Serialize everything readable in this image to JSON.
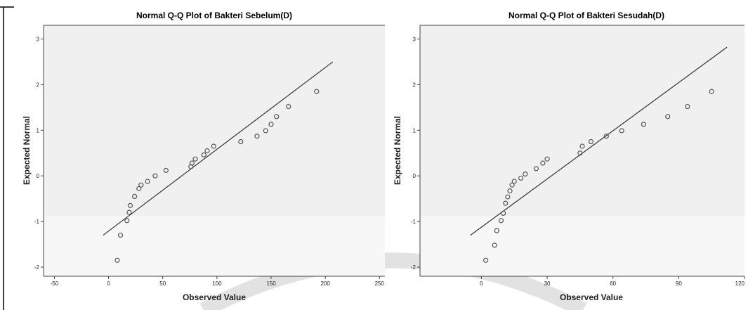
{
  "chart_data": [
    {
      "type": "scatter",
      "title": "Normal Q-Q Plot of Bakteri Sebelum(D)",
      "xlabel": "Observed Value",
      "ylabel": "Expected Normal",
      "xlim": [
        -60,
        255
      ],
      "ylim": [
        -2.2,
        3.3
      ],
      "x_ticks": [
        -50,
        0,
        50,
        100,
        150,
        200,
        250
      ],
      "y_ticks": [
        -2,
        -1,
        0,
        1,
        2,
        3
      ],
      "grid": false,
      "legend": "none",
      "points": [
        {
          "x": 8,
          "y": -1.85
        },
        {
          "x": 11,
          "y": -1.3
        },
        {
          "x": 17,
          "y": -0.98
        },
        {
          "x": 19,
          "y": -0.8
        },
        {
          "x": 20,
          "y": -0.65
        },
        {
          "x": 24,
          "y": -0.45
        },
        {
          "x": 28,
          "y": -0.28
        },
        {
          "x": 30,
          "y": -0.2
        },
        {
          "x": 36,
          "y": -0.12
        },
        {
          "x": 43,
          "y": 0.0
        },
        {
          "x": 53,
          "y": 0.12
        },
        {
          "x": 76,
          "y": 0.2
        },
        {
          "x": 77,
          "y": 0.28
        },
        {
          "x": 80,
          "y": 0.37
        },
        {
          "x": 88,
          "y": 0.46
        },
        {
          "x": 91,
          "y": 0.55
        },
        {
          "x": 97,
          "y": 0.65
        },
        {
          "x": 122,
          "y": 0.75
        },
        {
          "x": 137,
          "y": 0.87
        },
        {
          "x": 145,
          "y": 0.99
        },
        {
          "x": 150,
          "y": 1.13
        },
        {
          "x": 155,
          "y": 1.3
        },
        {
          "x": 166,
          "y": 1.52
        },
        {
          "x": 192,
          "y": 1.85
        }
      ],
      "reference_line": {
        "x": [
          -5,
          207
        ],
        "y": [
          -1.3,
          2.5
        ]
      },
      "colors": {
        "point": "#555555",
        "line": "#333333",
        "plot_bg": "#f0f0f0"
      }
    },
    {
      "type": "scatter",
      "title": "Normal Q-Q Plot of Bakteri Sesudah(D)",
      "xlabel": "Observed Value",
      "ylabel": "Expected Normal",
      "xlim": [
        -28,
        120
      ],
      "ylim": [
        -2.2,
        3.3
      ],
      "x_ticks": [
        0,
        30,
        60,
        90,
        120
      ],
      "y_ticks": [
        -2,
        -1,
        0,
        1,
        2,
        3
      ],
      "grid": false,
      "legend": "none",
      "points": [
        {
          "x": 2,
          "y": -1.85
        },
        {
          "x": 6,
          "y": -1.52
        },
        {
          "x": 7,
          "y": -1.2
        },
        {
          "x": 9,
          "y": -0.98
        },
        {
          "x": 10,
          "y": -0.82
        },
        {
          "x": 11,
          "y": -0.6
        },
        {
          "x": 12,
          "y": -0.46
        },
        {
          "x": 13,
          "y": -0.33
        },
        {
          "x": 14,
          "y": -0.2
        },
        {
          "x": 15,
          "y": -0.12
        },
        {
          "x": 18,
          "y": -0.05
        },
        {
          "x": 20,
          "y": 0.04
        },
        {
          "x": 25,
          "y": 0.16
        },
        {
          "x": 28,
          "y": 0.28
        },
        {
          "x": 30,
          "y": 0.37
        },
        {
          "x": 45,
          "y": 0.5
        },
        {
          "x": 46,
          "y": 0.65
        },
        {
          "x": 50,
          "y": 0.75
        },
        {
          "x": 57,
          "y": 0.87
        },
        {
          "x": 64,
          "y": 0.99
        },
        {
          "x": 74,
          "y": 1.13
        },
        {
          "x": 85,
          "y": 1.3
        },
        {
          "x": 94,
          "y": 1.52
        },
        {
          "x": 105,
          "y": 1.85
        }
      ],
      "reference_line": {
        "x": [
          -5,
          112
        ],
        "y": [
          -1.3,
          2.82
        ]
      },
      "colors": {
        "point": "#555555",
        "line": "#333333",
        "plot_bg": "#f0f0f0"
      }
    }
  ]
}
